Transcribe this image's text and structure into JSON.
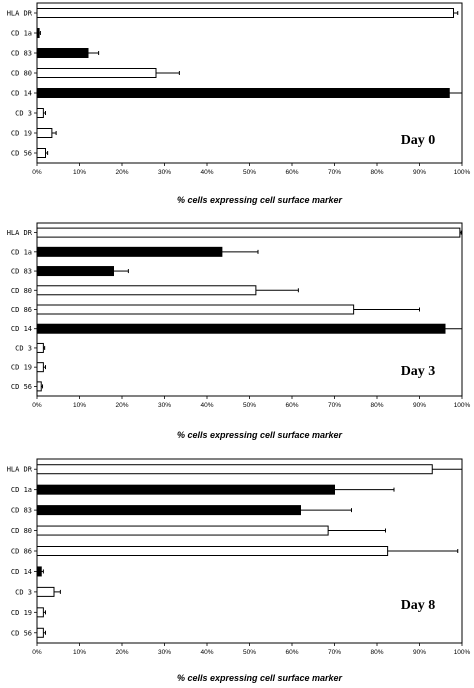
{
  "chart_data": [
    {
      "type": "bar",
      "orientation": "horizontal",
      "panel_label": "Day 0",
      "xlabel": "% cells expressing cell surface marker",
      "xlim": [
        0,
        100
      ],
      "xticks": [
        "0%",
        "10%",
        "20%",
        "30%",
        "40%",
        "50%",
        "60%",
        "70%",
        "80%",
        "90%",
        "100%"
      ],
      "categories": [
        "HLA DR",
        "CD 1a",
        "CD 83",
        "CD 80",
        "CD 14",
        "CD 3",
        "CD 19",
        "CD 56"
      ],
      "values": [
        98,
        0.5,
        12,
        28,
        97,
        1.5,
        3.5,
        2
      ],
      "errors": [
        1,
        0.3,
        2.5,
        5.5,
        3,
        0.5,
        1,
        0.5
      ],
      "fills": [
        "white",
        "black",
        "black",
        "white",
        "black",
        "white",
        "white",
        "white"
      ],
      "grid": false
    },
    {
      "type": "bar",
      "orientation": "horizontal",
      "panel_label": "Day 3",
      "xlabel": "% cells expressing cell surface marker",
      "xlim": [
        0,
        100
      ],
      "xticks": [
        "0%",
        "10%",
        "20%",
        "30%",
        "40%",
        "50%",
        "60%",
        "70%",
        "80%",
        "90%",
        "100%"
      ],
      "categories": [
        "HLA DR",
        "CD 1a",
        "CD 83",
        "CD 80",
        "CD 86",
        "CD 14",
        "CD 3",
        "CD 19",
        "CD 56"
      ],
      "values": [
        99.5,
        43.5,
        18,
        51.5,
        74.5,
        96,
        1.5,
        1.5,
        1
      ],
      "errors": [
        0.3,
        8.5,
        3.5,
        10,
        15.5,
        4,
        0.3,
        0.5,
        0.3
      ],
      "fills": [
        "white",
        "black",
        "black",
        "white",
        "white",
        "black",
        "white",
        "white",
        "white"
      ],
      "grid": false
    },
    {
      "type": "bar",
      "orientation": "horizontal",
      "panel_label": "Day 8",
      "xlabel": "% cells expressing cell surface marker",
      "xlim": [
        0,
        100
      ],
      "xticks": [
        "0%",
        "10%",
        "20%",
        "30%",
        "40%",
        "50%",
        "60%",
        "70%",
        "80%",
        "90%",
        "100%"
      ],
      "categories": [
        "HLA DR",
        "CD 1a",
        "CD 83",
        "CD 80",
        "CD 86",
        "CD 14",
        "CD 3",
        "CD 19",
        "CD 56"
      ],
      "values": [
        93,
        70,
        62,
        68.5,
        82.5,
        1,
        4,
        1.5,
        1.5
      ],
      "errors": [
        7,
        14,
        12,
        13.5,
        16.5,
        0.5,
        1.5,
        0.5,
        0.5
      ],
      "fills": [
        "white",
        "black",
        "black",
        "white",
        "white",
        "black",
        "white",
        "white",
        "white"
      ],
      "grid": false
    }
  ]
}
